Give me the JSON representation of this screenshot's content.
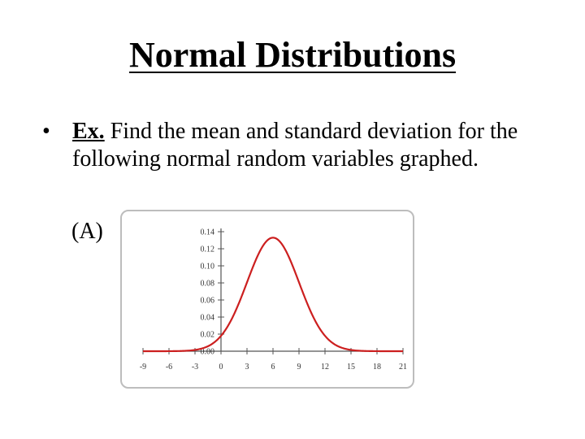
{
  "slide": {
    "title": "Normal Distributions",
    "bullet": "•",
    "example_label": "Ex.",
    "example_text": " Find the mean and standard deviation for the following normal random variables graphed.",
    "part_label": "(A)"
  },
  "chart_data": {
    "type": "line",
    "title": "",
    "xlabel": "",
    "ylabel": "",
    "xlim": [
      -9,
      21
    ],
    "ylim": [
      0,
      0.14
    ],
    "x_ticks": [
      -9,
      -6,
      -3,
      0,
      3,
      6,
      9,
      12,
      15,
      18,
      21
    ],
    "y_ticks": [
      "0.00",
      "0.02",
      "0.04",
      "0.06",
      "0.08",
      "0.10",
      "0.12",
      "0.14"
    ],
    "series": [
      {
        "name": "",
        "color": "#cc1f1f",
        "distribution": "normal",
        "mean": 6,
        "std": 3,
        "x": [
          -9,
          -6,
          -3,
          -1,
          0,
          1,
          2,
          3,
          4,
          5,
          6,
          7,
          8,
          9,
          10,
          11,
          12,
          13,
          15,
          18,
          21
        ],
        "y": [
          0.0,
          0.0,
          0.0015,
          0.0087,
          0.018,
          0.0332,
          0.0547,
          0.0807,
          0.1065,
          0.1258,
          0.133,
          0.1258,
          0.1065,
          0.0807,
          0.0547,
          0.0332,
          0.018,
          0.0087,
          0.0015,
          0.0,
          0.0
        ]
      }
    ],
    "grid": false,
    "legend": "none"
  }
}
